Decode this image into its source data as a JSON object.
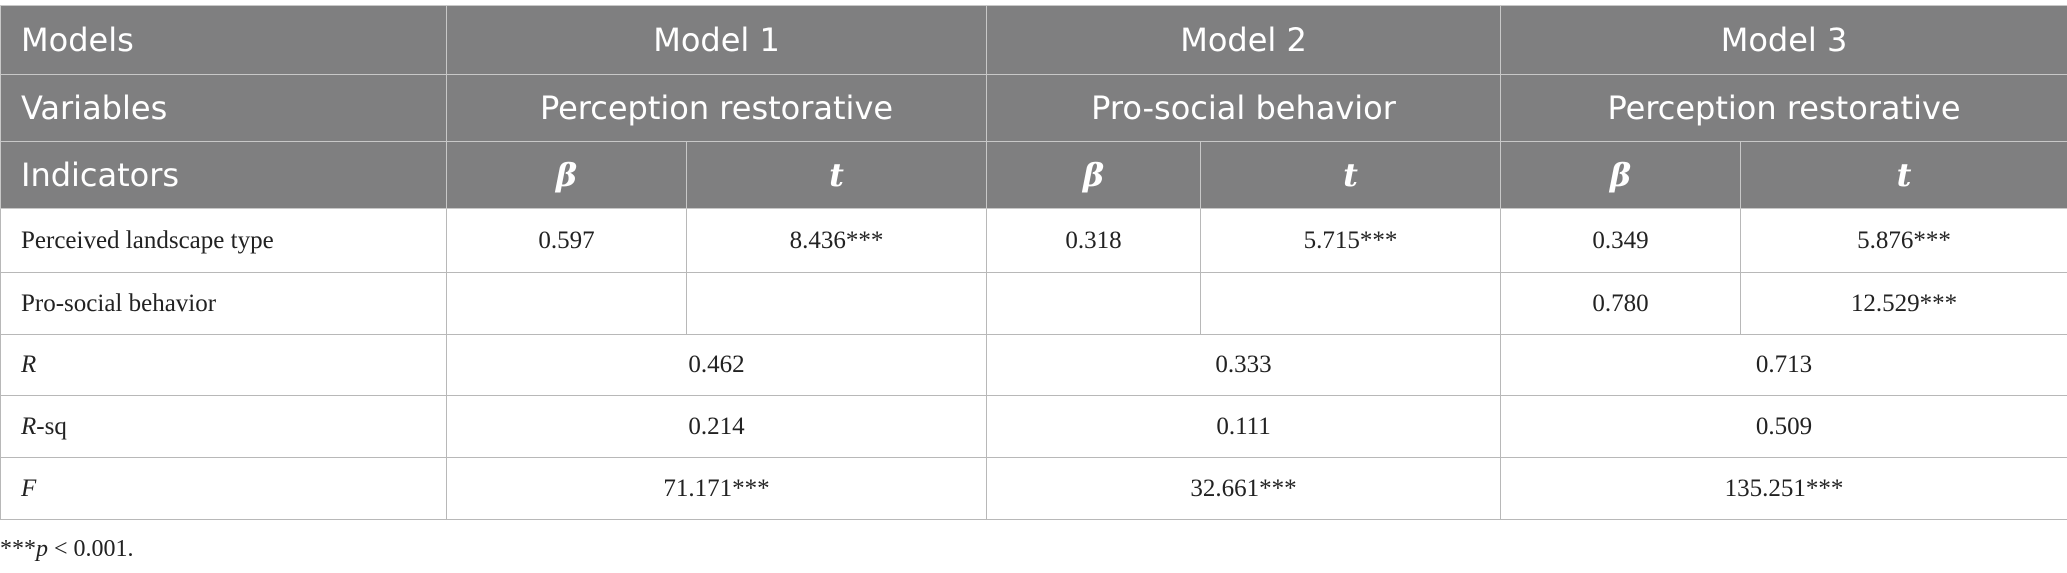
{
  "table": {
    "header": [
      [
        "Models",
        "Model 1",
        "Model 2",
        "Model 3"
      ],
      [
        "Variables",
        "Perception restorative",
        "Pro-social behavior",
        "Perception restorative"
      ],
      [
        "Indicators",
        "β",
        "t",
        "β",
        "t",
        "β",
        "t"
      ]
    ],
    "coef_rows": [
      {
        "label": "Perceived landscape type",
        "cells": [
          "0.597",
          "8.436***",
          "0.318",
          "5.715***",
          "0.349",
          "5.876***"
        ]
      },
      {
        "label": "Pro-social behavior",
        "model3_cells": [
          "0.780",
          "12.529***"
        ]
      }
    ],
    "stat_rows": [
      {
        "label": "R",
        "cells": [
          "0.462",
          "0.333",
          "0.713"
        ]
      },
      {
        "label": "R",
        "suffix": "-sq",
        "cells": [
          "0.214",
          "0.111",
          "0.509"
        ]
      },
      {
        "label": "F",
        "cells": [
          "71.171***",
          "32.661***",
          "135.251***"
        ]
      }
    ]
  },
  "footnote": {
    "marker": "***",
    "p": "p",
    "text": " < 0.001."
  }
}
